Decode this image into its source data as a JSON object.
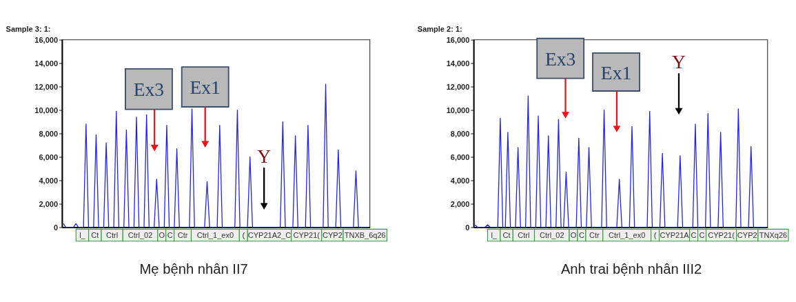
{
  "chart_data": [
    {
      "type": "line",
      "title": "Sample 3: 1:",
      "categories": [
        null,
        null,
        null,
        null,
        null,
        null,
        null,
        null,
        null,
        null,
        null,
        null,
        null,
        null,
        null,
        null,
        null,
        null,
        null,
        null,
        null,
        null,
        null,
        null,
        null,
        null,
        null,
        null,
        null,
        null,
        null,
        null,
        null,
        null,
        null,
        null,
        null,
        null,
        null,
        null,
        null,
        null,
        null,
        null,
        null,
        null,
        null,
        null,
        null,
        null,
        null,
        null,
        null,
        null,
        null,
        null,
        null,
        null,
        null,
        null,
        null,
        null,
        null,
        null,
        null,
        null,
        null,
        null,
        null,
        null,
        null,
        null,
        null,
        null,
        null,
        null,
        null,
        null,
        null,
        null,
        null,
        null,
        null,
        null,
        null,
        null,
        null,
        null,
        null,
        null,
        null,
        null,
        null,
        null,
        null,
        null,
        null,
        null,
        null,
        null,
        null,
        null,
        null,
        null,
        null,
        null,
        null,
        null,
        null,
        null,
        null,
        null,
        null,
        null,
        null,
        null,
        null,
        null,
        null,
        null,
        null,
        null
      ],
      "series": [
        {
          "color": "#1f1fff",
          "values": [
            300,
            0,
            0,
            0,
            0,
            300,
            0,
            0,
            0,
            8800,
            0,
            0,
            0,
            7900,
            0,
            0,
            0,
            7200,
            0,
            0,
            0,
            9900,
            0,
            0,
            0,
            8300,
            0,
            0,
            0,
            9400,
            0,
            0,
            0,
            9600,
            0,
            0,
            0,
            4100,
            0,
            0,
            0,
            8700,
            0,
            0,
            0,
            6700,
            0,
            0,
            0,
            0,
            0,
            10100,
            0,
            0,
            0,
            0,
            0,
            3900,
            0,
            0,
            0,
            0,
            8700,
            0,
            0,
            0,
            0,
            0,
            0,
            10000,
            0,
            0,
            0,
            0,
            6000,
            0,
            0,
            0,
            0,
            0,
            0,
            0,
            0,
            0,
            0,
            0,
            0,
            9000,
            0,
            0,
            0,
            0,
            7800,
            0,
            0,
            0,
            0,
            8700,
            0,
            0,
            0,
            0,
            0,
            0,
            12200,
            0,
            0,
            0,
            0,
            6600,
            0,
            0,
            0,
            0,
            0,
            0,
            4800,
            0,
            0,
            0,
            0,
            0
          ]
        }
      ],
      "ylim": [
        0,
        16000
      ],
      "yticks": [
        0,
        {
          "value": 2000,
          "label": "2,000"
        },
        {
          "value": 4000,
          "label": "4,000"
        },
        {
          "value": 6000,
          "label": "6,000"
        },
        {
          "value": 8000,
          "label": "8,000"
        },
        {
          "value": 10000,
          "label": "10,000"
        },
        {
          "value": 12000,
          "label": "12,000"
        },
        {
          "value": 14000,
          "label": "14,000"
        },
        {
          "value": 16000,
          "label": "16,000"
        }
      ],
      "tick_labels": "y",
      "annotations": [
        "Ex3",
        "Ex1",
        "Y",
        "Mẹ bệnh nhân II7",
        "l_",
        "Ct",
        "Ctrl",
        "Ctrl_02",
        "O",
        "C",
        "Ctr",
        "Ctrl_1_ex0",
        "(",
        "CYP21A2_C",
        "CYP21(",
        "CYP2",
        "TNXB_6q26"
      ]
    },
    {
      "type": "line",
      "title": "Sample 2: 1:",
      "categories": [
        null,
        null,
        null,
        null,
        null,
        null,
        null,
        null,
        null,
        null,
        null,
        null,
        null,
        null,
        null,
        null,
        null,
        null,
        null,
        null,
        null,
        null,
        null,
        null,
        null,
        null,
        null,
        null,
        null,
        null,
        null,
        null,
        null,
        null,
        null,
        null,
        null,
        null,
        null,
        null,
        null,
        null,
        null,
        null,
        null,
        null,
        null,
        null,
        null,
        null,
        null,
        null,
        null,
        null,
        null,
        null,
        null,
        null,
        null,
        null,
        null,
        null,
        null,
        null,
        null,
        null,
        null,
        null,
        null,
        null,
        null,
        null,
        null,
        null,
        null,
        null,
        null,
        null,
        null,
        null,
        null,
        null,
        null,
        null,
        null,
        null,
        null,
        null,
        null,
        null,
        null,
        null,
        null,
        null,
        null,
        null,
        null,
        null,
        null,
        null,
        null,
        null,
        null,
        null,
        null,
        null,
        null,
        null,
        null,
        null,
        null,
        null,
        null,
        null,
        null,
        null
      ],
      "series": [
        {
          "color": "#1f1fff",
          "values": [
            200,
            0,
            0,
            0,
            0,
            200,
            0,
            0,
            0,
            0,
            9300,
            0,
            0,
            8100,
            0,
            0,
            0,
            6800,
            0,
            0,
            0,
            11200,
            0,
            0,
            0,
            9500,
            0,
            0,
            0,
            7800,
            0,
            0,
            0,
            9200,
            0,
            0,
            4700,
            0,
            0,
            0,
            0,
            7600,
            0,
            0,
            0,
            6800,
            0,
            0,
            0,
            0,
            0,
            10000,
            0,
            0,
            0,
            0,
            0,
            4100,
            0,
            0,
            0,
            0,
            8600,
            0,
            0,
            0,
            0,
            0,
            0,
            9900,
            0,
            0,
            0,
            0,
            6300,
            0,
            0,
            0,
            0,
            0,
            0,
            6100,
            0,
            0,
            0,
            0,
            0,
            8800,
            0,
            0,
            0,
            0,
            9700,
            0,
            0,
            0,
            0,
            8100,
            0,
            0,
            0,
            0,
            0,
            0,
            10100,
            0,
            0,
            0,
            0,
            6900,
            0,
            0,
            0,
            0,
            0,
            0
          ]
        }
      ],
      "ylim": [
        0,
        16000
      ],
      "yticks": [
        0,
        {
          "value": 2000,
          "label": "2,000"
        },
        {
          "value": 4000,
          "label": "4,000"
        },
        {
          "value": 6000,
          "label": "6,000"
        },
        {
          "value": 8000,
          "label": "8,000"
        },
        {
          "value": 10000,
          "label": "10,000"
        },
        {
          "value": 12000,
          "label": "12,000"
        },
        {
          "value": 14000,
          "label": "14,000"
        },
        {
          "value": 16000,
          "label": "16,000"
        }
      ],
      "tick_labels": "y",
      "annotations": [
        "Ex3",
        "Ex1",
        "Y",
        "Anh trai bệnh nhân III2",
        "l_",
        "Ct",
        "Ctrl",
        "Ctrl_02",
        "O",
        "C",
        "Ctr",
        "Ctrl_1_ex0",
        "(",
        "CYP21A",
        "C",
        "C",
        "CYP21(",
        "CYP2",
        "TNXq26"
      ]
    }
  ]
}
